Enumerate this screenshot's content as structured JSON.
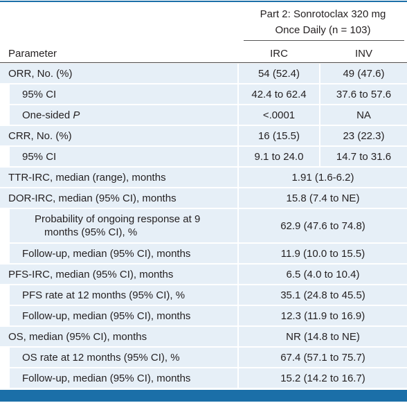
{
  "table": {
    "group_header": "Part 2: Sonrotoclax 320 mg Once Daily (n = 103)",
    "columns": [
      "Parameter",
      "IRC",
      "INV"
    ],
    "rows": [
      {
        "parameter": "ORR, No. (%)",
        "irc": "54 (52.4)",
        "inv": "49 (47.6)"
      },
      {
        "parameter": "95% CI",
        "irc": "42.4 to 62.4",
        "inv": "37.6 to 57.6"
      },
      {
        "parameter": "One-sided",
        "parameter_italic": "P",
        "irc": "<.0001",
        "inv": "NA"
      },
      {
        "parameter": "CRR, No. (%)",
        "irc": "16 (15.5)",
        "inv": "23 (22.3)"
      },
      {
        "parameter": "95% CI",
        "irc": "9.1 to 24.0",
        "inv": "14.7 to 31.6"
      },
      {
        "parameter": "TTR-IRC, median (range), months",
        "value": "1.91 (1.6-6.2)"
      },
      {
        "parameter": "DOR-IRC, median (95% CI), months",
        "value": "15.8 (7.4 to NE)"
      },
      {
        "parameter": "Probability of ongoing response at 9 months (95% CI), %",
        "value": "62.9 (47.6 to 74.8)"
      },
      {
        "parameter": "Follow-up, median (95% CI), months",
        "value": "11.9 (10.0 to 15.5)"
      },
      {
        "parameter": "PFS-IRC, median (95% CI), months",
        "value": "6.5 (4.0 to 10.4)"
      },
      {
        "parameter": "PFS rate at 12 months (95% CI), %",
        "value": "35.1 (24.8 to 45.5)"
      },
      {
        "parameter": "Follow-up, median (95% CI), months",
        "value": "12.3 (11.9 to 16.9)"
      },
      {
        "parameter": "OS, median (95% CI), months",
        "value": "NR (14.8 to NE)"
      },
      {
        "parameter": "OS rate at 12 months (95% CI), %",
        "value": "67.4 (57.1 to 75.7)"
      },
      {
        "parameter": "Follow-up, median (95% CI), months",
        "value": "15.2 (14.2 to 16.7)"
      }
    ]
  }
}
